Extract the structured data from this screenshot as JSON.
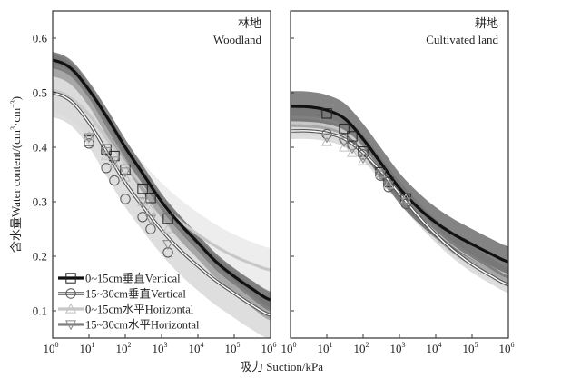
{
  "chart_data": [
    {
      "type": "line",
      "title_cn": "林地",
      "title_en": "Woodland",
      "xscale": "log",
      "xlim": [
        1,
        1000000
      ],
      "ylim": [
        0.05,
        0.65
      ],
      "x_ticks_exp": [
        0,
        1,
        2,
        3,
        4,
        5,
        6
      ],
      "y_ticks": [
        0.1,
        0.2,
        0.3,
        0.4,
        0.5,
        0.6
      ],
      "curve_log10_suction": [
        0,
        0.5,
        1,
        1.5,
        2,
        2.5,
        3,
        3.5,
        4,
        4.5,
        5,
        5.5,
        6
      ],
      "series": [
        {
          "name": "0~15cm垂直Vertical",
          "marker": "square",
          "curve": [
            0.56,
            0.545,
            0.505,
            0.455,
            0.4,
            0.35,
            0.3,
            0.26,
            0.225,
            0.19,
            0.163,
            0.14,
            0.12
          ],
          "band": 0.015,
          "points_suction": [
            10,
            30,
            50,
            100,
            300,
            500,
            1500
          ],
          "points_theta": [
            0.412,
            0.396,
            0.384,
            0.359,
            0.324,
            0.307,
            0.269
          ]
        },
        {
          "name": "15~30cm垂直Vertical",
          "marker": "circle",
          "curve": [
            0.5,
            0.485,
            0.445,
            0.39,
            0.335,
            0.29,
            0.248,
            0.212,
            0.182,
            0.155,
            0.132,
            0.11,
            0.092
          ],
          "band": 0.045,
          "points_suction": [
            10,
            30,
            50,
            100,
            300,
            500,
            1500
          ],
          "points_theta": [
            0.407,
            0.362,
            0.339,
            0.305,
            0.272,
            0.25,
            0.207
          ]
        },
        {
          "name": "0~15cm水平Horizontal",
          "marker": "triangle-up",
          "curve": [
            0.505,
            0.49,
            0.46,
            0.415,
            0.37,
            0.33,
            0.295,
            0.265,
            0.24,
            0.218,
            0.2,
            0.186,
            0.175
          ],
          "band": 0.04,
          "points_suction": [
            10,
            30,
            50,
            100,
            300,
            500,
            1500
          ],
          "points_theta": [
            0.42,
            0.385,
            0.37,
            0.345,
            0.3,
            0.285,
            0.25
          ]
        },
        {
          "name": "15~30cm水平Horizontal",
          "marker": "triangle-down",
          "curve": [
            0.55,
            0.535,
            0.495,
            0.44,
            0.385,
            0.335,
            0.29,
            0.25,
            0.215,
            0.18,
            0.152,
            0.125,
            0.102
          ],
          "band": 0.02,
          "points_suction": [
            10,
            30,
            50,
            100,
            300,
            500,
            1500
          ],
          "points_theta": [
            0.418,
            0.392,
            0.375,
            0.355,
            0.3,
            0.268,
            0.222
          ]
        }
      ]
    },
    {
      "type": "line",
      "title_cn": "耕地",
      "title_en": "Cultivated land",
      "xscale": "log",
      "xlim": [
        1,
        1000000
      ],
      "ylim": [
        0.05,
        0.65
      ],
      "x_ticks_exp": [
        0,
        1,
        2,
        3,
        4,
        5,
        6
      ],
      "y_ticks": [
        0.1,
        0.2,
        0.3,
        0.4,
        0.5,
        0.6
      ],
      "curve_log10_suction": [
        0,
        0.5,
        1,
        1.5,
        2,
        2.5,
        3,
        3.5,
        4,
        4.5,
        5,
        5.5,
        6
      ],
      "series": [
        {
          "name": "0~15cm垂直Vertical",
          "marker": "square",
          "curve": [
            0.475,
            0.474,
            0.468,
            0.452,
            0.415,
            0.37,
            0.325,
            0.29,
            0.262,
            0.24,
            0.222,
            0.205,
            0.19
          ],
          "band": 0.028,
          "points_suction": [
            10,
            30,
            50,
            100,
            300,
            500,
            1500
          ],
          "points_theta": [
            0.462,
            0.434,
            0.42,
            0.392,
            0.354,
            0.336,
            0.306
          ]
        },
        {
          "name": "15~30cm垂直Vertical",
          "marker": "circle",
          "curve": [
            0.43,
            0.43,
            0.426,
            0.415,
            0.39,
            0.355,
            0.315,
            0.275,
            0.24,
            0.21,
            0.185,
            0.165,
            0.148
          ],
          "band": 0.015,
          "points_suction": [
            10,
            30,
            50,
            100,
            300,
            500,
            1500
          ],
          "points_theta": [
            0.424,
            0.415,
            0.404,
            0.387,
            0.348,
            0.327,
            0.296
          ]
        },
        {
          "name": "0~15cm水平Horizontal",
          "marker": "triangle-up",
          "curve": [
            0.445,
            0.444,
            0.44,
            0.428,
            0.398,
            0.358,
            0.318,
            0.28,
            0.248,
            0.22,
            0.198,
            0.18,
            0.165
          ],
          "band": 0.022,
          "points_suction": [
            10,
            30,
            50,
            100,
            300,
            500,
            1500
          ],
          "points_theta": [
            0.41,
            0.4,
            0.39,
            0.375,
            0.352,
            0.332,
            0.305
          ]
        },
        {
          "name": "15~30cm水平Horizontal",
          "marker": "triangle-down",
          "curve": [
            0.455,
            0.454,
            0.45,
            0.438,
            0.405,
            0.362,
            0.32,
            0.282,
            0.25,
            0.222,
            0.2,
            0.18,
            0.162
          ],
          "band": 0.018,
          "points_suction": [
            10,
            30,
            50,
            100,
            300,
            500,
            1500
          ],
          "points_theta": [
            0.418,
            0.41,
            0.398,
            0.38,
            0.35,
            0.33,
            0.3
          ]
        }
      ]
    }
  ],
  "axes": {
    "ylabel_cn": "含水量",
    "ylabel_en": "Water content/(cm",
    "ylabel_unit_mid": "·cm",
    "ylabel_close": ")",
    "ylabel_sup1": "3",
    "ylabel_sup2": "−3",
    "xlabel": "吸力 Suction/kPa",
    "x_tick_base": "10"
  },
  "legend": {
    "position": "bottom-left",
    "entries": [
      "0~15cm垂直Vertical",
      "15~30cm垂直Vertical",
      "0~15cm水平Horizontal",
      "15~30cm水平Horizontal"
    ]
  },
  "colors": {
    "s0": "#111111",
    "s1": "#555555",
    "s2": "#c8c8c8",
    "s3": "#808080",
    "band0": "#6e6e6e",
    "band1": "#d6d6d6",
    "band2": "#e8e8e8",
    "band3": "#9a9a9a"
  }
}
